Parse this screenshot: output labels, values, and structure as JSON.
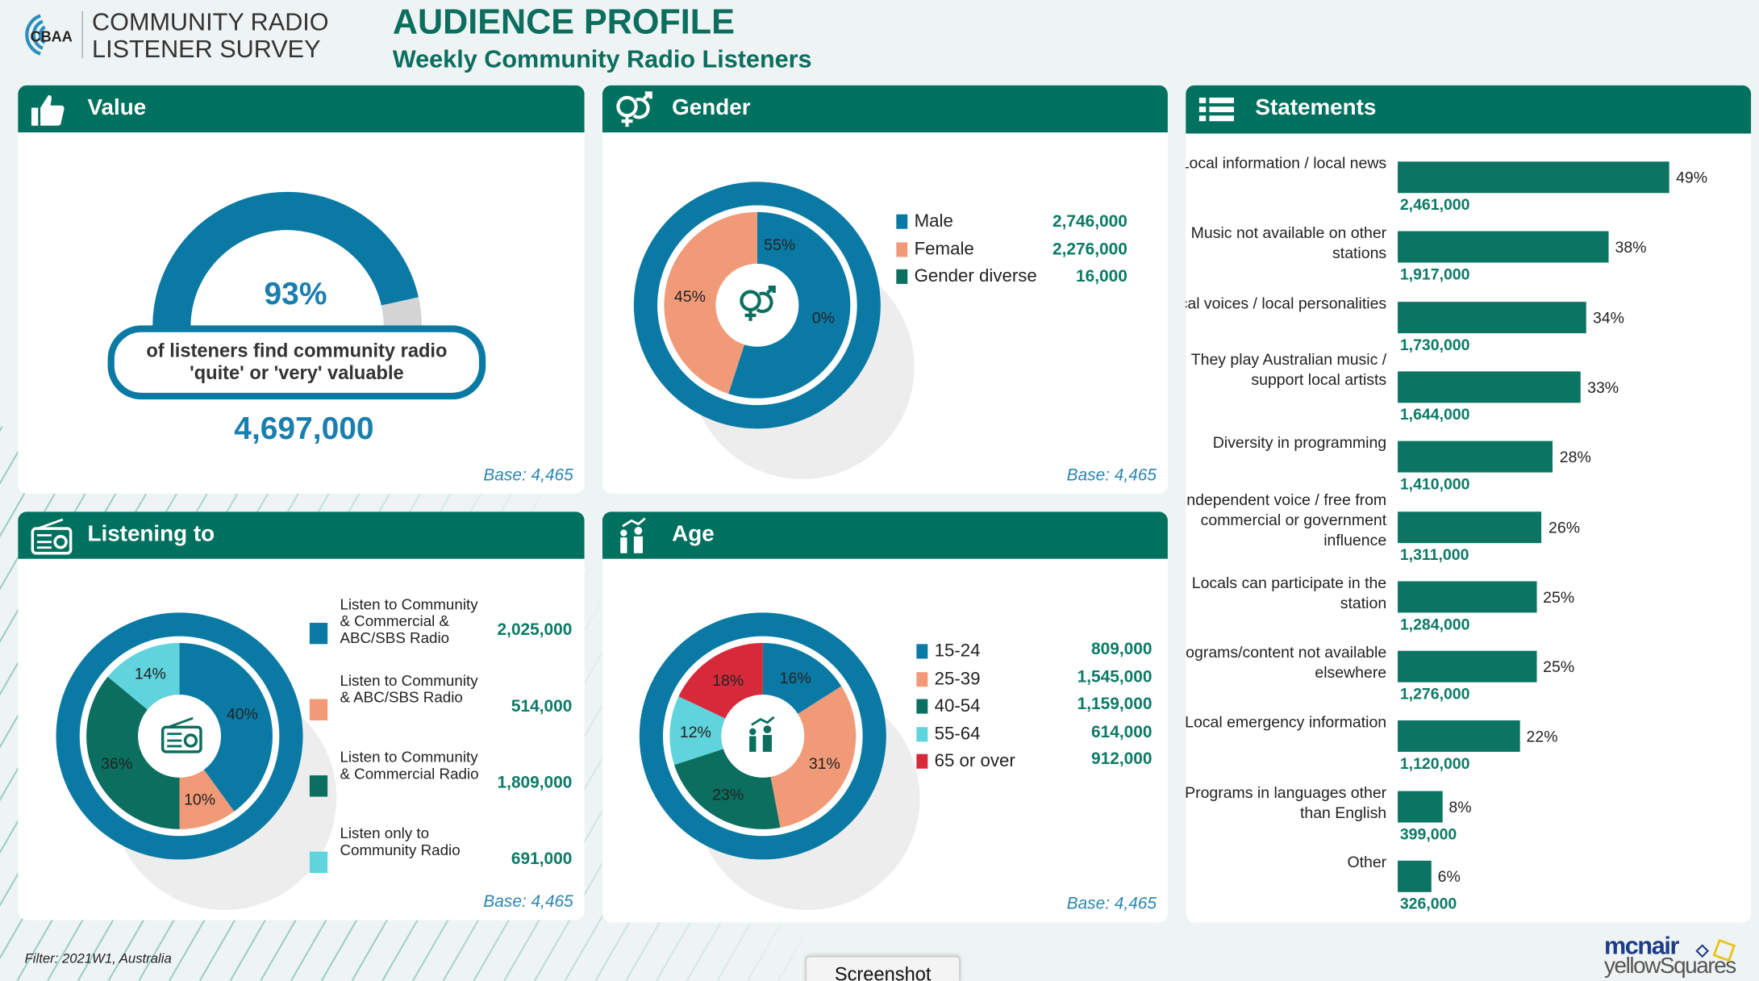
{
  "header": {
    "logo_text": "CBAA",
    "survey_line1": "COMMUNITY RADIO",
    "survey_line2": "LISTENER SURVEY",
    "title": "AUDIENCE PROFILE",
    "subtitle": "Weekly Community Radio Listeners"
  },
  "colors": {
    "header_green": "#00715f",
    "blue": "#0a7aa5",
    "peach": "#f09a78",
    "dark_green": "#0b6e5f",
    "cyan": "#5fd4dc",
    "red": "#d62a3a"
  },
  "value": {
    "title": "Value",
    "icon": "thumbs-up-icon",
    "percent": "93%",
    "percent_value": 93,
    "text1": "of listeners find community radio",
    "text2": "'quite' or 'very' valuable",
    "count": "4,697,000",
    "base": "Base: 4,465"
  },
  "gender": {
    "title": "Gender",
    "icon": "gender-icon",
    "base": "Base: 4,465",
    "items": [
      {
        "label": "Male",
        "value": "2,746,000",
        "pct": 55,
        "pct_label": "55%",
        "color": "#0a7aa5"
      },
      {
        "label": "Female",
        "value": "2,276,000",
        "pct": 45,
        "pct_label": "45%",
        "color": "#f09a78"
      },
      {
        "label": "Gender diverse",
        "value": "16,000",
        "pct": 0,
        "pct_label": "0%",
        "color": "#0b6e5f"
      }
    ]
  },
  "listening": {
    "title": "Listening to",
    "icon": "radio-icon",
    "base": "Base: 4,465",
    "items": [
      {
        "label": "Listen to Community & Commercial & ABC/SBS Radio",
        "value": "2,025,000",
        "pct": 40,
        "pct_label": "40%",
        "color": "#0a7aa5"
      },
      {
        "label": "Listen to Community & ABC/SBS Radio",
        "value": "514,000",
        "pct": 10,
        "pct_label": "10%",
        "color": "#f09a78"
      },
      {
        "label": "Listen to Community & Commercial Radio",
        "value": "1,809,000",
        "pct": 36,
        "pct_label": "36%",
        "color": "#0b6e5f"
      },
      {
        "label": "Listen only to Community Radio",
        "value": "691,000",
        "pct": 14,
        "pct_label": "14%",
        "color": "#5fd4dc"
      }
    ]
  },
  "age": {
    "title": "Age",
    "icon": "family-growth-icon",
    "base": "Base: 4,465",
    "items": [
      {
        "label": "15-24",
        "value": "809,000",
        "pct": 16,
        "pct_label": "16%",
        "color": "#0a7aa5"
      },
      {
        "label": "25-39",
        "value": "1,545,000",
        "pct": 31,
        "pct_label": "31%",
        "color": "#f09a78"
      },
      {
        "label": "40-54",
        "value": "1,159,000",
        "pct": 23,
        "pct_label": "23%",
        "color": "#0b6e5f"
      },
      {
        "label": "55-64",
        "value": "614,000",
        "pct": 12,
        "pct_label": "12%",
        "color": "#5fd4dc"
      },
      {
        "label": "65 or over",
        "value": "912,000",
        "pct": 18,
        "pct_label": "18%",
        "color": "#d62a3a"
      }
    ]
  },
  "statements": {
    "title": "Statements",
    "icon": "list-icon",
    "chart_data": {
      "type": "bar",
      "orientation": "horizontal",
      "xlim": [
        0,
        100
      ],
      "categories": [
        "Local information / local news",
        "Music not available on other stations",
        "Local voices / local personalities",
        "They play Australian music / support local artists",
        "Diversity in programming",
        "Independent voice / free from commercial or government influence",
        "Locals can participate in the station",
        "Programs/content not available elsewhere",
        "Local emergency information",
        "Programs in languages other than English",
        "Other"
      ],
      "values": [
        49,
        38,
        34,
        33,
        28,
        26,
        25,
        25,
        22,
        8,
        6
      ],
      "pct_labels": [
        "49%",
        "38%",
        "34%",
        "33%",
        "28%",
        "26%",
        "25%",
        "25%",
        "22%",
        "8%",
        "6%"
      ],
      "counts": [
        "2,461,000",
        "1,917,000",
        "1,730,000",
        "1,644,000",
        "1,410,000",
        "1,311,000",
        "1,284,000",
        "1,276,000",
        "1,120,000",
        "399,000",
        "326,000"
      ]
    }
  },
  "footer": {
    "filter": "Filter: 2021W1, Australia",
    "screenshot_button": "Screenshot",
    "brand_line1": "mcnair",
    "brand_line2": "yellowSquares"
  }
}
